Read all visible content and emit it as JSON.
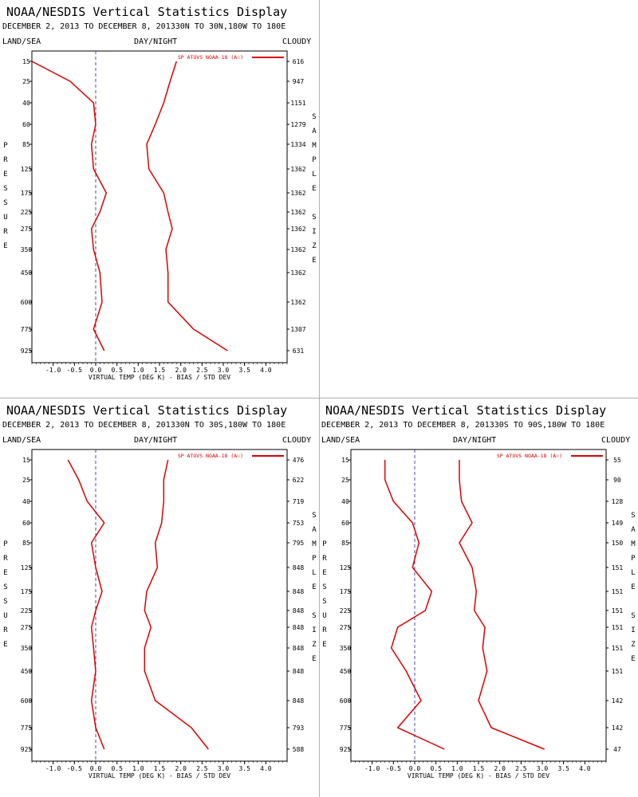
{
  "panels": [
    {
      "title": "NOAA/NESDIS Vertical Statistics Display",
      "subtitle": "DECEMBER 2, 2013 TO DECEMBER 8, 201330N TO 30N,180W TO 180E",
      "left_label": "LAND/SEA",
      "center_label": "DAY/NIGHT",
      "right_label": "CLOUDY",
      "legend": "SP ATOVS NOAA-18 (A☉)",
      "y_axis_label": "PRESSURE",
      "right_axis_label": "SAMPLE SIZE",
      "x_axis_label": "VIRTUAL TEMP (DEG K) - BIAS / STD DEV",
      "line_color": "#dd0000"
    },
    {
      "title": "NOAA/NESDIS Vertical Statistics Display",
      "subtitle": "DECEMBER 2, 2013 TO DECEMBER 8, 201330N TO 30S,180W TO 180E",
      "left_label": "LAND/SEA",
      "center_label": "DAY/NIGHT",
      "right_label": "CLOUDY",
      "legend": "SP ATOVS NOAA-18 (A☉)",
      "y_axis_label": "PRESSURE",
      "right_axis_label": "SAMPLE SIZE",
      "x_axis_label": "VIRTUAL TEMP (DEG K) - BIAS / STD DEV",
      "line_color": "#dd0000"
    },
    {
      "title": "NOAA/NESDIS Vertical Statistics Display",
      "subtitle": "DECEMBER 2, 2013 TO DECEMBER 8, 201330S TO 90S,180W TO 180E",
      "left_label": "LAND/SEA",
      "center_label": "DAY/NIGHT",
      "right_label": "CLOUDY",
      "legend": "SP ATOVS NOAA-18 (A☉)",
      "y_axis_label": "PRESSURE",
      "right_axis_label": "SAMPLE SIZE",
      "x_axis_label": "VIRTUAL TEMP (DEG K) - BIAS / STD DEV",
      "line_color": "#dd0000"
    }
  ],
  "chart_data": [
    {
      "type": "line",
      "x_ticks": [
        "-1.0",
        "-0.5",
        "0.0",
        "0.5",
        "1.0",
        "1.5",
        "2.0",
        "2.5",
        "3.0",
        "3.5",
        "4.0"
      ],
      "xlim": [
        -1.5,
        4.5
      ],
      "y_ticks": [
        "15",
        "25",
        "40",
        "60",
        "85",
        "125",
        "175",
        "225",
        "275",
        "350",
        "450",
        "600",
        "775",
        "925"
      ],
      "sample_size": [
        "616",
        "947",
        "1151",
        "1279",
        "1334",
        "1362",
        "1362",
        "1362",
        "1362",
        "1362",
        "1362",
        "1362",
        "1307",
        "631"
      ],
      "series": [
        {
          "name": "bias",
          "values": [
            -1.5,
            -0.6,
            -0.05,
            0.0,
            -0.1,
            -0.05,
            0.25,
            0.1,
            -0.1,
            -0.05,
            0.1,
            0.15,
            -0.05,
            0.2
          ]
        },
        {
          "name": "std dev",
          "values": [
            1.9,
            1.75,
            1.6,
            1.4,
            1.2,
            1.25,
            1.6,
            1.7,
            1.8,
            1.65,
            1.7,
            1.7,
            2.3,
            3.1
          ]
        }
      ]
    },
    {
      "type": "line",
      "x_ticks": [
        "-1.0",
        "-0.5",
        "0.0",
        "0.5",
        "1.0",
        "1.5",
        "2.0",
        "2.5",
        "3.0",
        "3.5",
        "4.0"
      ],
      "xlim": [
        -1.5,
        4.5
      ],
      "y_ticks": [
        "15",
        "25",
        "40",
        "60",
        "85",
        "125",
        "175",
        "225",
        "275",
        "350",
        "450",
        "600",
        "775",
        "925"
      ],
      "sample_size": [
        "476",
        "622",
        "719",
        "753",
        "795",
        "848",
        "848",
        "848",
        "848",
        "848",
        "848",
        "848",
        "793",
        "588"
      ],
      "series": [
        {
          "name": "bias",
          "values": [
            -0.65,
            -0.4,
            -0.2,
            0.2,
            -0.1,
            0.0,
            0.15,
            0.0,
            -0.1,
            -0.05,
            0.0,
            -0.1,
            0.0,
            0.2
          ]
        },
        {
          "name": "std dev",
          "values": [
            1.7,
            1.6,
            1.6,
            1.55,
            1.4,
            1.45,
            1.2,
            1.15,
            1.3,
            1.15,
            1.15,
            1.4,
            2.25,
            2.65
          ]
        }
      ]
    },
    {
      "type": "line",
      "x_ticks": [
        "-1.0",
        "-0.5",
        "0.0",
        "0.5",
        "1.0",
        "1.5",
        "2.0",
        "2.5",
        "3.0",
        "3.5",
        "4.0"
      ],
      "xlim": [
        -1.5,
        4.5
      ],
      "y_ticks": [
        "15",
        "25",
        "40",
        "60",
        "85",
        "125",
        "175",
        "225",
        "275",
        "350",
        "450",
        "600",
        "775",
        "925"
      ],
      "sample_size": [
        "55",
        "90",
        "128",
        "149",
        "150",
        "151",
        "151",
        "151",
        "151",
        "151",
        "151",
        "142",
        "142",
        "47"
      ],
      "series": [
        {
          "name": "bias",
          "values": [
            -0.7,
            -0.7,
            -0.5,
            -0.05,
            0.1,
            -0.05,
            0.4,
            0.25,
            -0.4,
            -0.55,
            -0.2,
            0.15,
            -0.4,
            0.7
          ]
        },
        {
          "name": "std dev",
          "values": [
            1.05,
            1.05,
            1.1,
            1.35,
            1.05,
            1.35,
            1.45,
            1.4,
            1.65,
            1.6,
            1.7,
            1.5,
            1.8,
            3.05
          ]
        }
      ]
    }
  ]
}
